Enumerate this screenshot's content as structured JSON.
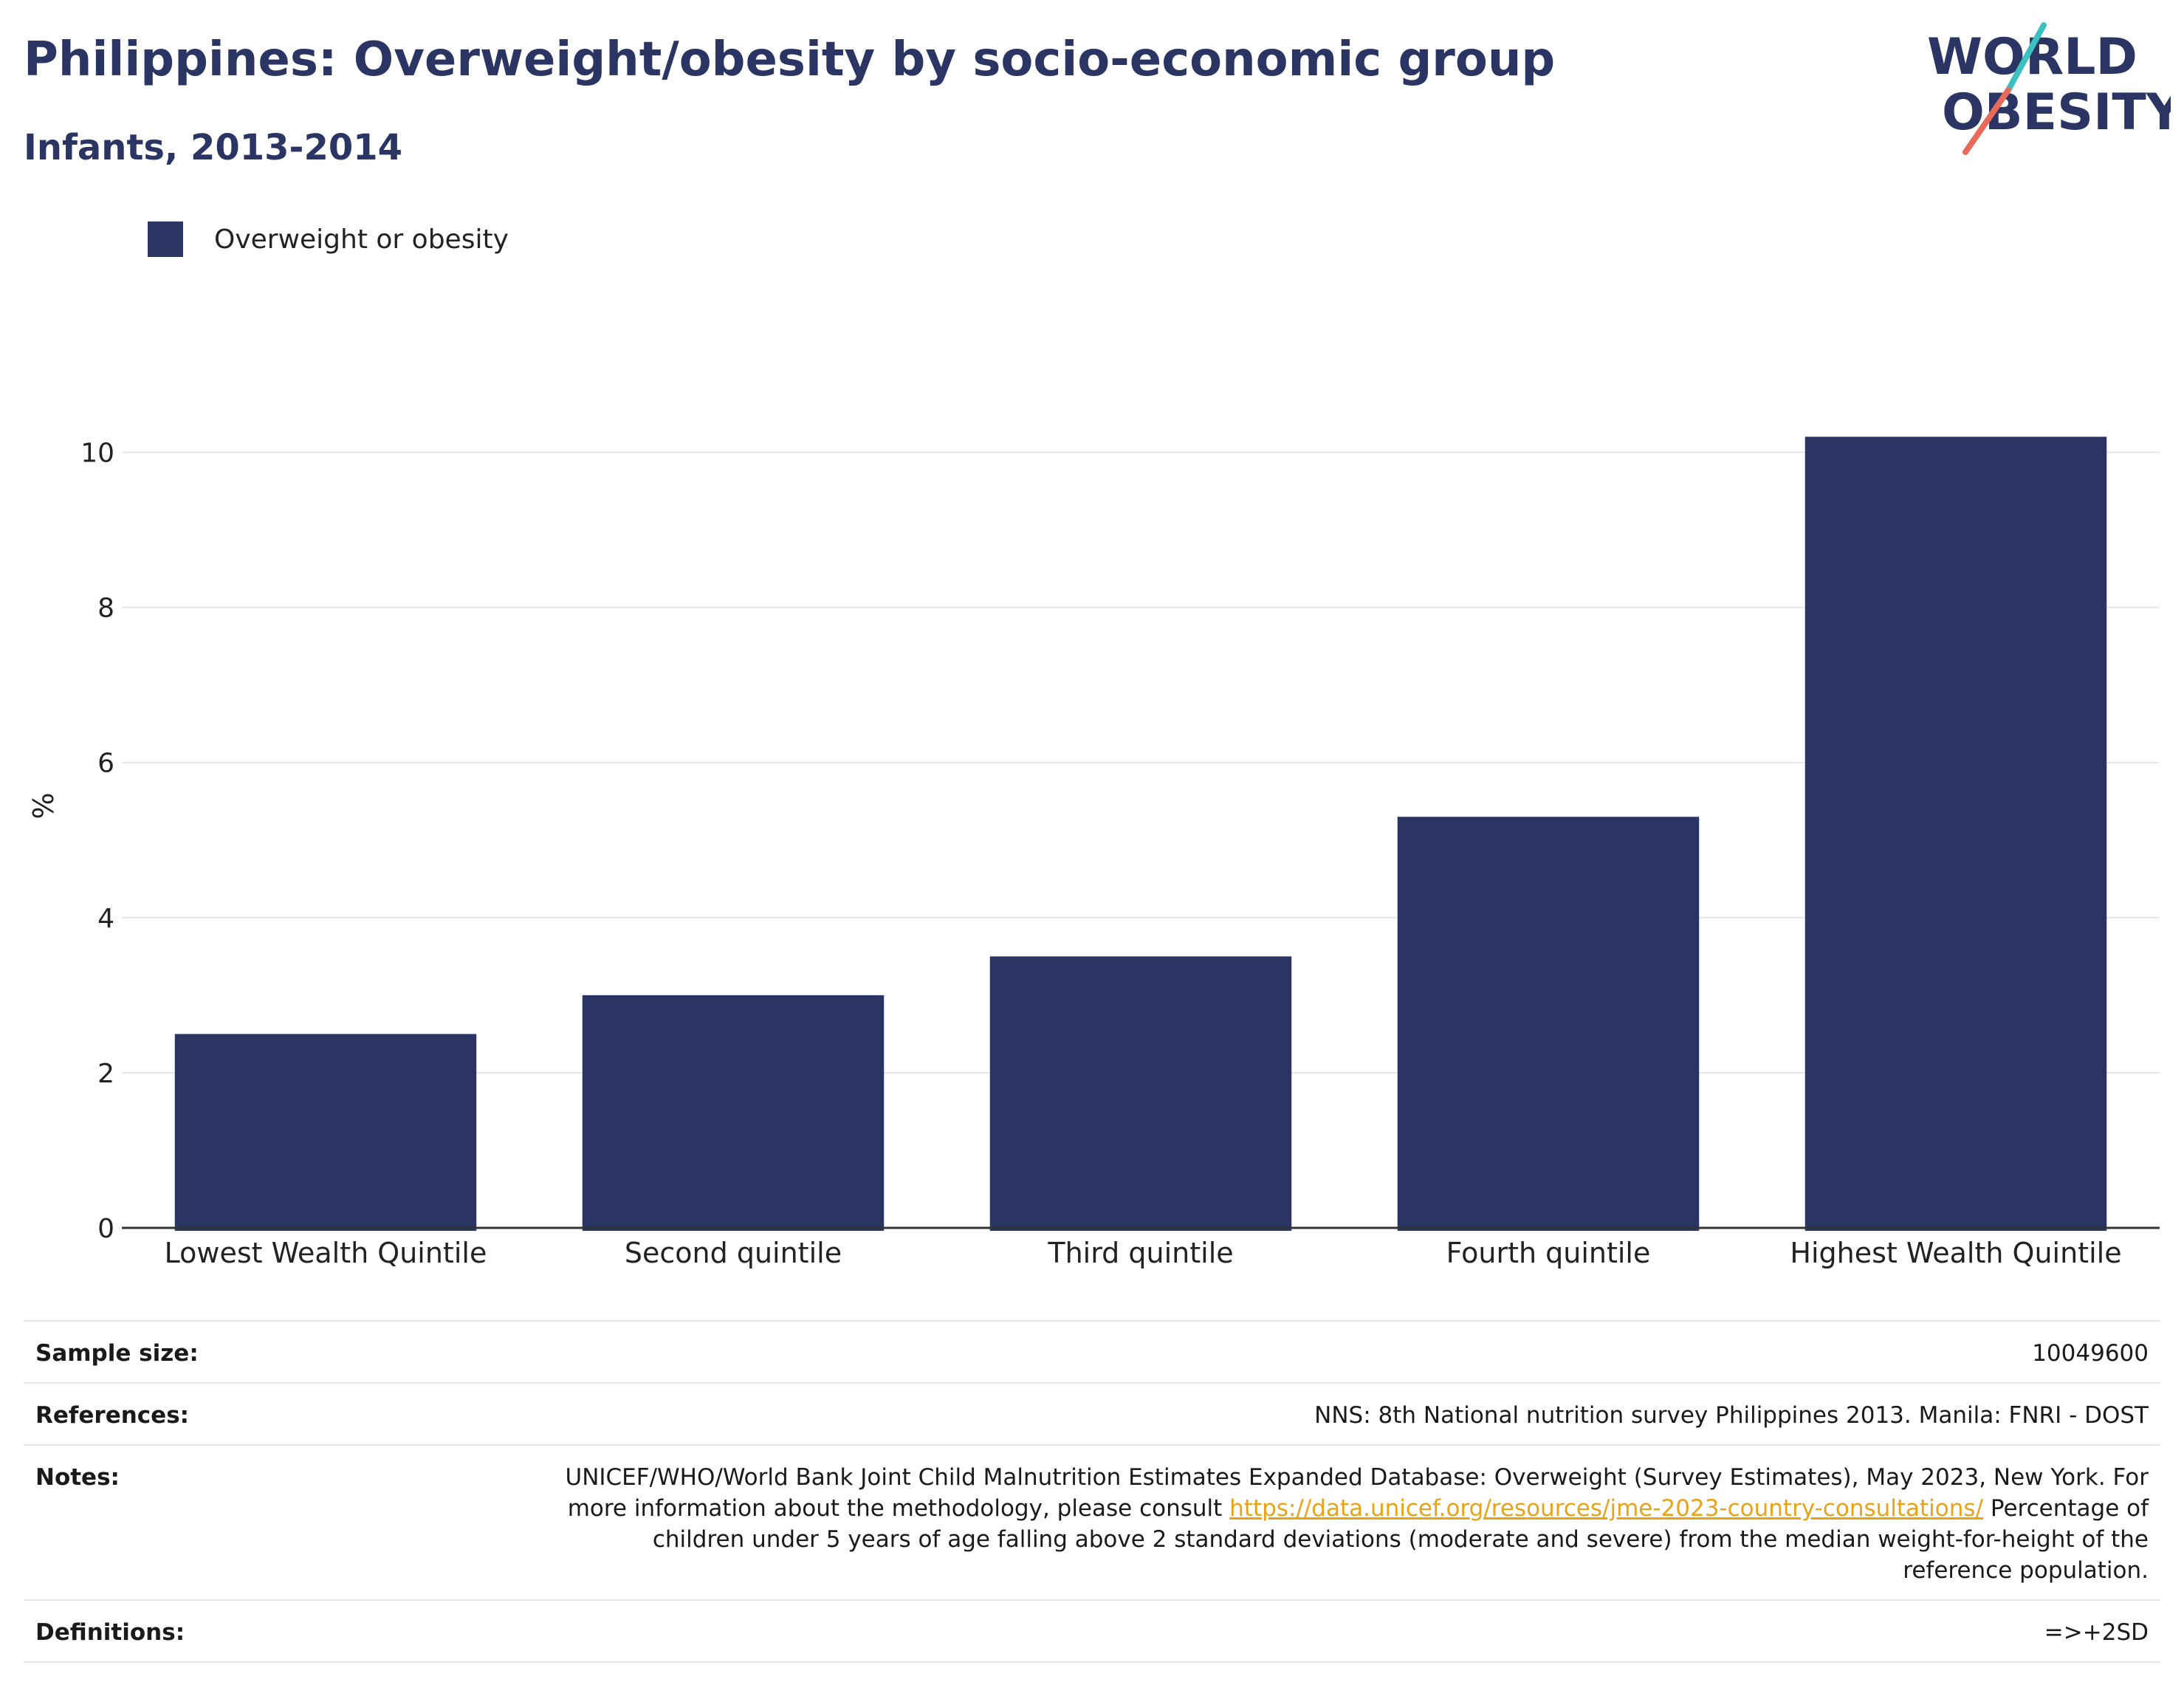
{
  "header": {
    "title": "Philippines: Overweight/obesity by socio-economic group",
    "subtitle": "Infants, 2013-2014"
  },
  "logo": {
    "line1": "WORLD",
    "line2": "OBESITY"
  },
  "legend": {
    "label": "Overweight or obesity"
  },
  "colors": {
    "bar": "#2a3563",
    "title": "#2b3563",
    "grid": "#e6e6e6",
    "link": "#e8a317",
    "logo_teal": "#3cc1c0",
    "logo_coral": "#ea6a5a"
  },
  "chart_data": {
    "type": "bar",
    "categories": [
      "Lowest Wealth Quintile",
      "Second quintile",
      "Third quintile",
      "Fourth quintile",
      "Highest Wealth Quintile"
    ],
    "series": [
      {
        "name": "Overweight or obesity",
        "values": [
          2.5,
          3.0,
          3.5,
          5.3,
          10.2
        ]
      }
    ],
    "ylabel": "%",
    "ylim": [
      0,
      10.5
    ],
    "yticks": [
      0,
      2,
      4,
      6,
      8,
      10
    ],
    "grid": true,
    "legend_position": "top-left"
  },
  "info": {
    "sample_size_label": "Sample size:",
    "sample_size_value": "10049600",
    "references_label": "References:",
    "references_value": "NNS: 8th National nutrition survey Philippines 2013. Manila: FNRI - DOST",
    "notes_label": "Notes:",
    "notes_text_1": "UNICEF/WHO/World Bank Joint Child Malnutrition Estimates Expanded Database: Overweight (Survey Estimates), May 2023, New York. For more information about the methodology, please consult ",
    "notes_link": "https://data.unicef.org/resources/jme-2023-country-consultations/",
    "notes_text_2": " Percentage of children under 5 years of age falling above 2 standard deviations (moderate and severe) from the median weight-for-height of the reference population.",
    "definitions_label": "Definitions:",
    "definitions_value": "=>+2SD"
  }
}
